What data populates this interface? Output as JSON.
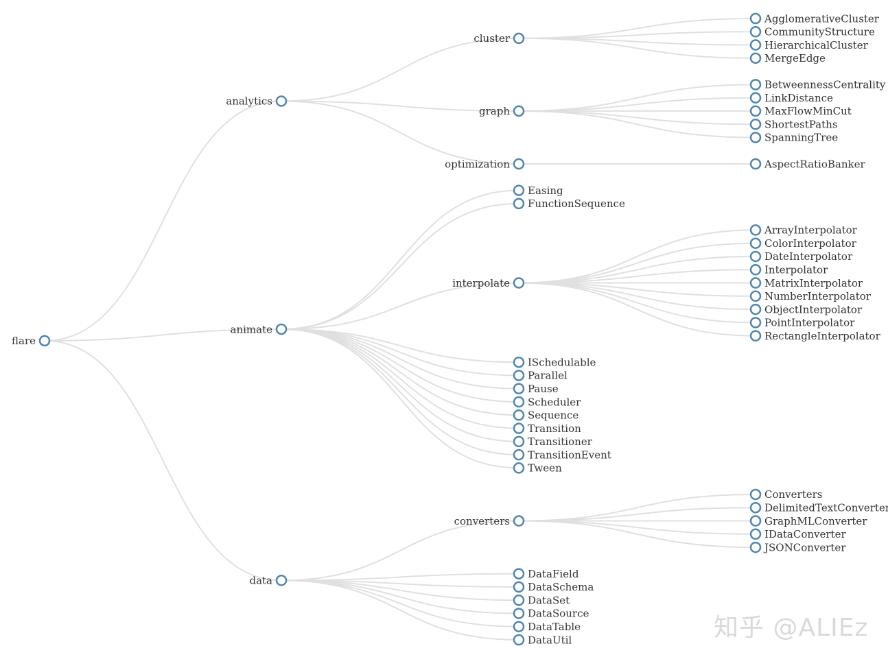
{
  "tree": {
    "name": "flare",
    "children": [
      {
        "name": "analytics",
        "children": [
          {
            "name": "cluster",
            "children": [
              {
                "name": "AgglomerativeCluster"
              },
              {
                "name": "CommunityStructure"
              },
              {
                "name": "HierarchicalCluster"
              },
              {
                "name": "MergeEdge"
              }
            ]
          },
          {
            "name": "graph",
            "children": [
              {
                "name": "BetweennessCentrality"
              },
              {
                "name": "LinkDistance"
              },
              {
                "name": "MaxFlowMinCut"
              },
              {
                "name": "ShortestPaths"
              },
              {
                "name": "SpanningTree"
              }
            ]
          },
          {
            "name": "optimization",
            "children": [
              {
                "name": "AspectRatioBanker"
              }
            ]
          }
        ]
      },
      {
        "name": "animate",
        "children": [
          {
            "name": "Easing"
          },
          {
            "name": "FunctionSequence"
          },
          {
            "name": "interpolate",
            "children": [
              {
                "name": "ArrayInterpolator"
              },
              {
                "name": "ColorInterpolator"
              },
              {
                "name": "DateInterpolator"
              },
              {
                "name": "Interpolator"
              },
              {
                "name": "MatrixInterpolator"
              },
              {
                "name": "NumberInterpolator"
              },
              {
                "name": "ObjectInterpolator"
              },
              {
                "name": "PointInterpolator"
              },
              {
                "name": "RectangleInterpolator"
              }
            ]
          },
          {
            "name": "ISchedulable"
          },
          {
            "name": "Parallel"
          },
          {
            "name": "Pause"
          },
          {
            "name": "Scheduler"
          },
          {
            "name": "Sequence"
          },
          {
            "name": "Transition"
          },
          {
            "name": "Transitioner"
          },
          {
            "name": "TransitionEvent"
          },
          {
            "name": "Tween"
          }
        ]
      },
      {
        "name": "data",
        "children": [
          {
            "name": "converters",
            "children": [
              {
                "name": "Converters"
              },
              {
                "name": "DelimitedTextConverter"
              },
              {
                "name": "GraphMLConverter"
              },
              {
                "name": "IDataConverter"
              },
              {
                "name": "JSONConverter"
              }
            ]
          },
          {
            "name": "DataField"
          },
          {
            "name": "DataSchema"
          },
          {
            "name": "DataSet"
          },
          {
            "name": "DataSource"
          },
          {
            "name": "DataTable"
          },
          {
            "name": "DataUtil"
          }
        ]
      }
    ]
  },
  "watermark": "知乎 @ALIEz",
  "colors": {
    "link": "#e0e0e0",
    "node_stroke": "#4f86ad",
    "label": "#333333"
  }
}
